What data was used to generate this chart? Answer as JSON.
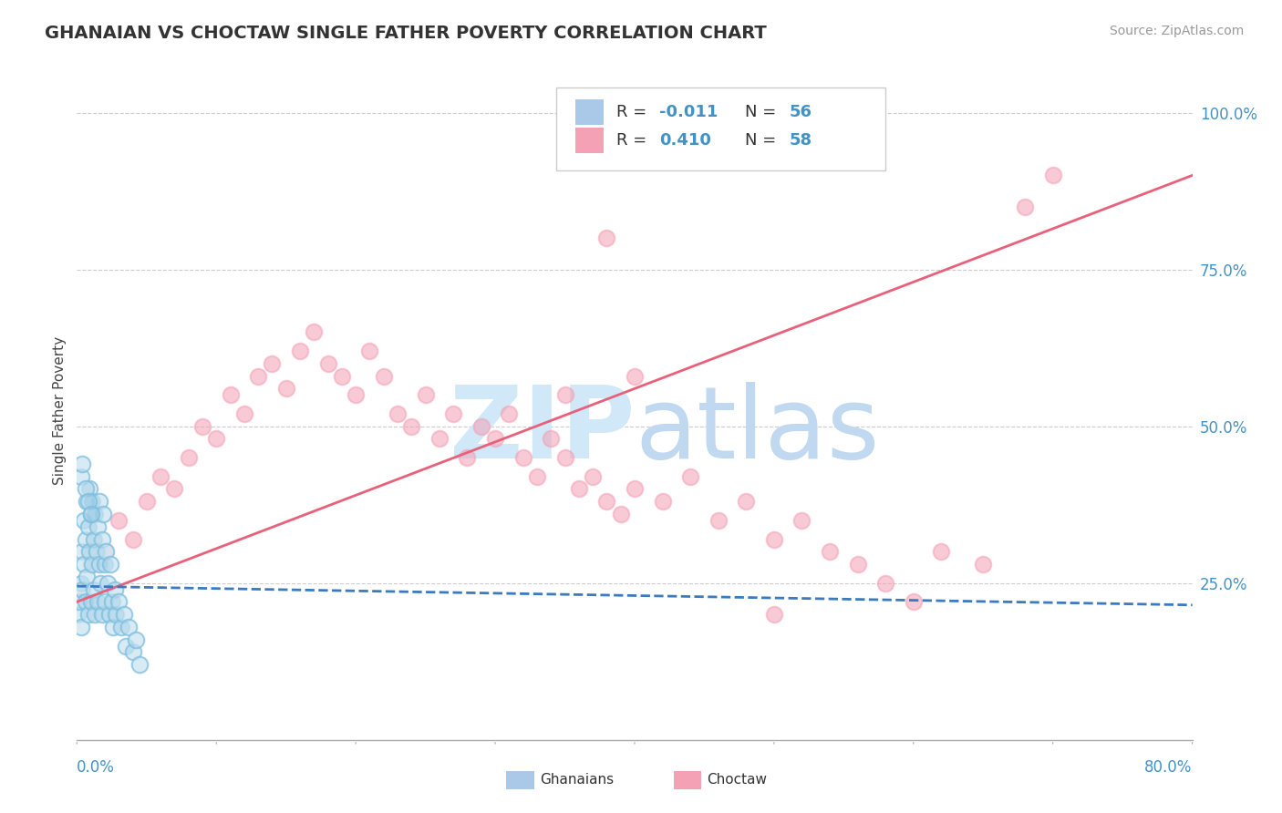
{
  "title": "GHANAIAN VS CHOCTAW SINGLE FATHER POVERTY CORRELATION CHART",
  "source_text": "Source: ZipAtlas.com",
  "ylabel": "Single Father Poverty",
  "xmin": 0.0,
  "xmax": 0.8,
  "ymin": 0.0,
  "ymax": 1.05,
  "blue_color": "#7fbfdf",
  "pink_color": "#f4a0b5",
  "blue_line_color": "#3a7abf",
  "pink_line_color": "#e8607a",
  "watermark_zip_color": "#d0e8f8",
  "watermark_atlas_color": "#c0d8f0",
  "background_color": "#ffffff",
  "ghanaian_x": [
    0.001,
    0.002,
    0.003,
    0.003,
    0.004,
    0.004,
    0.005,
    0.005,
    0.006,
    0.006,
    0.007,
    0.007,
    0.008,
    0.008,
    0.009,
    0.009,
    0.01,
    0.01,
    0.011,
    0.011,
    0.012,
    0.012,
    0.013,
    0.013,
    0.014,
    0.015,
    0.015,
    0.016,
    0.016,
    0.017,
    0.018,
    0.018,
    0.019,
    0.02,
    0.02,
    0.021,
    0.022,
    0.023,
    0.024,
    0.025,
    0.026,
    0.027,
    0.028,
    0.03,
    0.032,
    0.034,
    0.035,
    0.037,
    0.04,
    0.042,
    0.045,
    0.003,
    0.004,
    0.006,
    0.008,
    0.01
  ],
  "ghanaian_y": [
    0.2,
    0.22,
    0.25,
    0.18,
    0.3,
    0.24,
    0.35,
    0.28,
    0.32,
    0.22,
    0.38,
    0.26,
    0.34,
    0.2,
    0.4,
    0.3,
    0.36,
    0.22,
    0.38,
    0.28,
    0.32,
    0.24,
    0.36,
    0.2,
    0.3,
    0.34,
    0.22,
    0.28,
    0.38,
    0.25,
    0.32,
    0.2,
    0.36,
    0.28,
    0.22,
    0.3,
    0.25,
    0.2,
    0.28,
    0.22,
    0.18,
    0.24,
    0.2,
    0.22,
    0.18,
    0.2,
    0.15,
    0.18,
    0.14,
    0.16,
    0.12,
    0.42,
    0.44,
    0.4,
    0.38,
    0.36
  ],
  "choctaw_x": [
    0.01,
    0.02,
    0.03,
    0.04,
    0.05,
    0.06,
    0.07,
    0.08,
    0.09,
    0.1,
    0.11,
    0.12,
    0.13,
    0.14,
    0.15,
    0.16,
    0.17,
    0.18,
    0.19,
    0.2,
    0.21,
    0.22,
    0.23,
    0.24,
    0.25,
    0.26,
    0.27,
    0.28,
    0.29,
    0.3,
    0.31,
    0.32,
    0.33,
    0.34,
    0.35,
    0.36,
    0.37,
    0.38,
    0.39,
    0.4,
    0.42,
    0.44,
    0.46,
    0.48,
    0.5,
    0.52,
    0.54,
    0.56,
    0.58,
    0.6,
    0.62,
    0.65,
    0.68,
    0.7,
    0.35,
    0.4,
    0.38,
    0.5
  ],
  "choctaw_y": [
    0.28,
    0.3,
    0.35,
    0.32,
    0.38,
    0.42,
    0.4,
    0.45,
    0.5,
    0.48,
    0.55,
    0.52,
    0.58,
    0.6,
    0.56,
    0.62,
    0.65,
    0.6,
    0.58,
    0.55,
    0.62,
    0.58,
    0.52,
    0.5,
    0.55,
    0.48,
    0.52,
    0.45,
    0.5,
    0.48,
    0.52,
    0.45,
    0.42,
    0.48,
    0.45,
    0.4,
    0.42,
    0.38,
    0.36,
    0.4,
    0.38,
    0.42,
    0.35,
    0.38,
    0.32,
    0.35,
    0.3,
    0.28,
    0.25,
    0.22,
    0.3,
    0.28,
    0.85,
    0.9,
    0.55,
    0.58,
    0.8,
    0.2
  ],
  "pink_line_x0": 0.0,
  "pink_line_y0": 0.22,
  "pink_line_x1": 0.8,
  "pink_line_y1": 0.9,
  "blue_line_x0": 0.0,
  "blue_line_y0": 0.245,
  "blue_line_x1": 0.8,
  "blue_line_y1": 0.215
}
